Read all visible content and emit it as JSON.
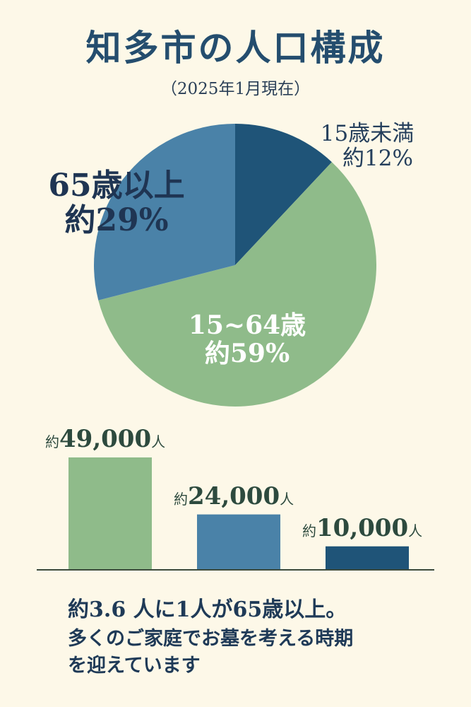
{
  "header": {
    "title": "知多市の人口構成",
    "subtitle": "（2025年1月現在）"
  },
  "chart_data": [
    {
      "type": "pie",
      "slices": [
        {
          "label": "15歳未満",
          "value_label": "約12%",
          "value": 12,
          "color": "#1f5478"
        },
        {
          "label": "15~64歳",
          "value_label": "約59%",
          "value": 59,
          "color": "#8fbb8a"
        },
        {
          "label": "65歳以上",
          "value_label": "約29%",
          "value": 29,
          "color": "#4a82a8"
        }
      ]
    },
    {
      "type": "bar",
      "bars": [
        {
          "prefix": "約",
          "value_label": "49,000",
          "unit": "人",
          "value": 49000,
          "color": "#8fbb8a"
        },
        {
          "prefix": "約",
          "value_label": "24,000",
          "unit": "人",
          "value": 24000,
          "color": "#4a82a8"
        },
        {
          "prefix": "約",
          "value_label": "10,000",
          "unit": "人",
          "value": 10000,
          "color": "#1f5478"
        }
      ]
    }
  ],
  "footer": {
    "line1": "約3.6 人に1人が65歳以上。",
    "line2": "多くのご家庭でお墓を考える時期",
    "line3": "を迎えています"
  }
}
